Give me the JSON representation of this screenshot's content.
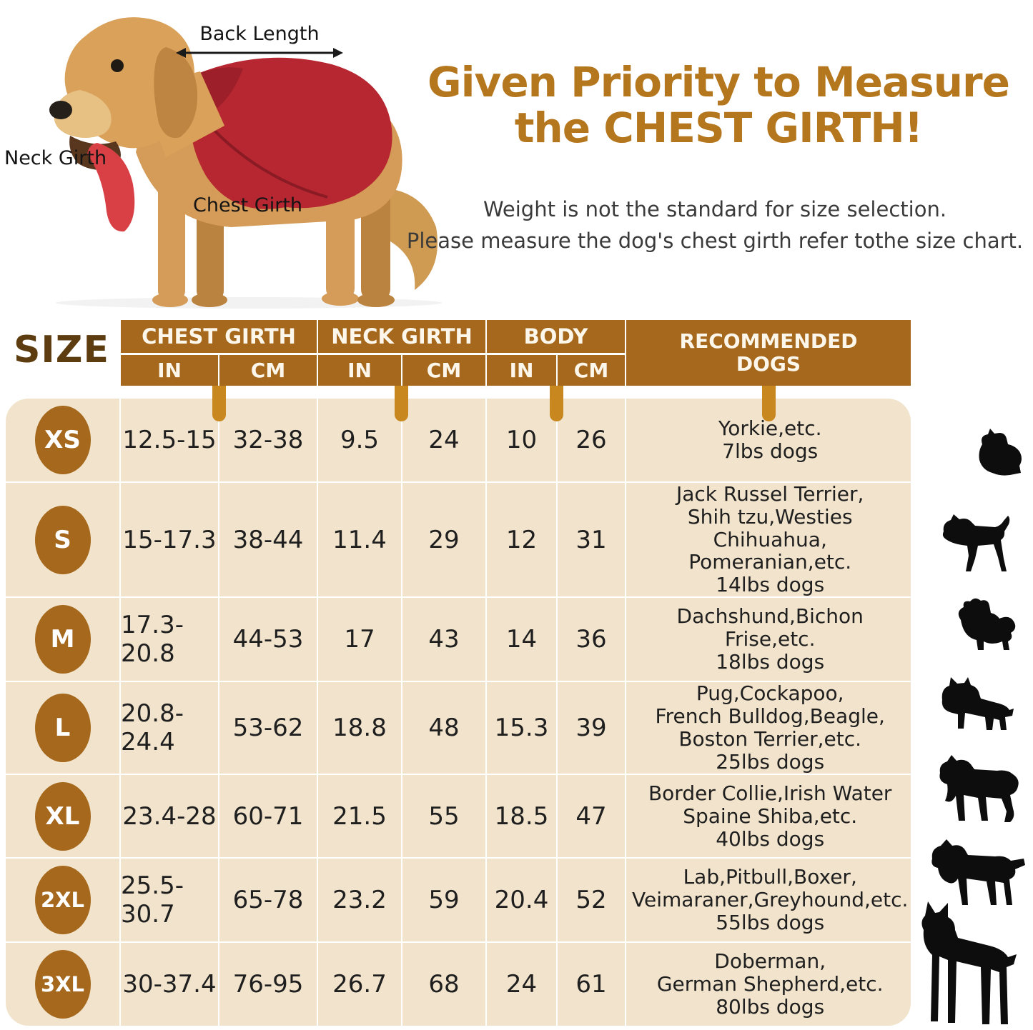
{
  "illustration": {
    "back_length_label": "Back Length",
    "neck_girth_label": "Neck Girth",
    "chest_girth_label": "Chest Girth",
    "coat_color": "#b72731",
    "dog_color": "#d49c58"
  },
  "heading": {
    "title_line1": "Given Priority to Measure",
    "title_line2": "the CHEST GIRTH!",
    "title_color": "#b5771e",
    "subtitle_line1": "Weight is not the standard for size selection.",
    "subtitle_line2": "Please measure the dog's chest girth refer tothe size chart."
  },
  "table": {
    "size_label": "SIZE",
    "header_color": "#a5681c",
    "row_color": "#f2e4cc",
    "tab_color": "#c9871f",
    "groups": [
      {
        "label": "CHEST GIRTH",
        "units": [
          "IN",
          "CM"
        ]
      },
      {
        "label": "NECK GIRTH",
        "units": [
          "IN",
          "CM"
        ]
      },
      {
        "label": "BODY",
        "units": [
          "IN",
          "CM"
        ]
      }
    ],
    "recommended_header": [
      "RECOMMENDED",
      "DOGS"
    ],
    "rows": [
      {
        "size": "XS",
        "chest_in": "12.5-15",
        "chest_cm": "32-38",
        "neck_in": "9.5",
        "neck_cm": "24",
        "body_in": "10",
        "body_cm": "26",
        "recommended": [
          "Yorkie,etc.",
          "7lbs dogs"
        ],
        "breed_icon": "yorkie"
      },
      {
        "size": "S",
        "chest_in": "15-17.3",
        "chest_cm": "38-44",
        "neck_in": "11.4",
        "neck_cm": "29",
        "body_in": "12",
        "body_cm": "31",
        "recommended": [
          "Jack Russel Terrier,",
          "Shih tzu,Westies Chihuahua,",
          "Pomeranian,etc.",
          "14lbs dogs"
        ],
        "breed_icon": "jack-russell-terrier"
      },
      {
        "size": "M",
        "chest_in": "17.3-20.8",
        "chest_cm": "44-53",
        "neck_in": "17",
        "neck_cm": "43",
        "body_in": "14",
        "body_cm": "36",
        "recommended": [
          "Dachshund,Bichon",
          "Frise,etc.",
          "18lbs dogs"
        ],
        "breed_icon": "bichon-frise"
      },
      {
        "size": "L",
        "chest_in": "20.8-24.4",
        "chest_cm": "53-62",
        "neck_in": "18.8",
        "neck_cm": "48",
        "body_in": "15.3",
        "body_cm": "39",
        "recommended": [
          "Pug,Cockapoo,",
          "French Bulldog,Beagle,",
          "Boston Terrier,etc.",
          "25lbs dogs"
        ],
        "breed_icon": "french-bulldog"
      },
      {
        "size": "XL",
        "chest_in": "23.4-28",
        "chest_cm": "60-71",
        "neck_in": "21.5",
        "neck_cm": "55",
        "body_in": "18.5",
        "body_cm": "47",
        "recommended": [
          "Border Collie,Irish Water",
          "Spaine Shiba,etc.",
          "40lbs dogs"
        ],
        "breed_icon": "border-collie"
      },
      {
        "size": "2XL",
        "chest_in": "25.5-30.7",
        "chest_cm": "65-78",
        "neck_in": "23.2",
        "neck_cm": "59",
        "body_in": "20.4",
        "body_cm": "52",
        "recommended": [
          "Lab,Pitbull,Boxer,",
          "Veimaraner,Greyhound,etc.",
          "55lbs dogs"
        ],
        "breed_icon": "spaniel"
      },
      {
        "size": "3XL",
        "chest_in": "30-37.4",
        "chest_cm": "76-95",
        "neck_in": "26.7",
        "neck_cm": "68",
        "body_in": "24",
        "body_cm": "61",
        "recommended": [
          "Doberman,",
          "German Shepherd,etc.",
          "80lbs dogs"
        ],
        "breed_icon": "doberman"
      }
    ]
  },
  "chart_data": {
    "type": "table",
    "title": "Given Priority to Measure the CHEST GIRTH!",
    "columns": [
      "SIZE",
      "CHEST GIRTH IN",
      "CHEST GIRTH CM",
      "NECK GIRTH IN",
      "NECK GIRTH CM",
      "BODY IN",
      "BODY CM",
      "RECOMMENDED DOGS"
    ],
    "rows": [
      [
        "XS",
        "12.5-15",
        "32-38",
        "9.5",
        "24",
        "10",
        "26",
        "Yorkie,etc. 7lbs dogs"
      ],
      [
        "S",
        "15-17.3",
        "38-44",
        "11.4",
        "29",
        "12",
        "31",
        "Jack Russel Terrier, Shih tzu,Westies Chihuahua, Pomeranian,etc. 14lbs dogs"
      ],
      [
        "M",
        "17.3-20.8",
        "44-53",
        "17",
        "43",
        "14",
        "36",
        "Dachshund,Bichon Frise,etc. 18lbs dogs"
      ],
      [
        "L",
        "20.8-24.4",
        "53-62",
        "18.8",
        "48",
        "15.3",
        "39",
        "Pug,Cockapoo, French Bulldog,Beagle, Boston Terrier,etc. 25lbs dogs"
      ],
      [
        "XL",
        "23.4-28",
        "60-71",
        "21.5",
        "55",
        "18.5",
        "47",
        "Border Collie,Irish Water Spaine Shiba,etc. 40lbs dogs"
      ],
      [
        "2XL",
        "25.5-30.7",
        "65-78",
        "23.2",
        "59",
        "20.4",
        "52",
        "Lab,Pitbull,Boxer, Veimaraner,Greyhound,etc. 55lbs dogs"
      ],
      [
        "3XL",
        "30-37.4",
        "76-95",
        "26.7",
        "68",
        "24",
        "61",
        "Doberman, German Shepherd,etc. 80lbs dogs"
      ]
    ]
  }
}
